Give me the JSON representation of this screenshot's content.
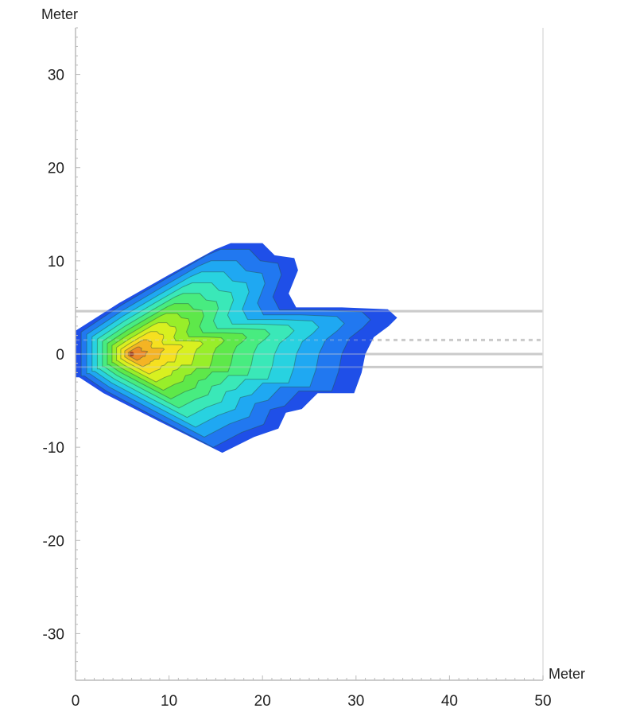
{
  "chart_data": {
    "type": "contour",
    "xlabel": "Meter",
    "ylabel": "Meter",
    "xlim": [
      0,
      50
    ],
    "ylim": [
      -35,
      35
    ],
    "xticks": [
      0,
      10,
      20,
      30,
      40,
      50
    ],
    "yticks": [
      -30,
      -20,
      -10,
      0,
      10,
      20,
      30
    ],
    "grid": false,
    "peak": [
      6,
      0
    ],
    "outer_boundary": [
      [
        0,
        2.5
      ],
      [
        4.7,
        5.5
      ],
      [
        10,
        8.5
      ],
      [
        14.9,
        11.2
      ],
      [
        16.6,
        11.9
      ],
      [
        20,
        11.9
      ],
      [
        21.3,
        10.6
      ],
      [
        23.4,
        10.3
      ],
      [
        23.8,
        9
      ],
      [
        22.8,
        6.5
      ],
      [
        23.6,
        5
      ],
      [
        28.5,
        5
      ],
      [
        33.4,
        4.8
      ],
      [
        34.4,
        3.9
      ],
      [
        33.5,
        3
      ],
      [
        31.9,
        1.8
      ],
      [
        31,
        0
      ],
      [
        30.6,
        -2
      ],
      [
        29.8,
        -4.2
      ],
      [
        25.9,
        -4.2
      ],
      [
        24.2,
        -5.9
      ],
      [
        22.5,
        -6.3
      ],
      [
        21.7,
        -8
      ],
      [
        19.1,
        -8.9
      ],
      [
        15.7,
        -10.6
      ],
      [
        14.9,
        -10.2
      ],
      [
        8.9,
        -7.2
      ],
      [
        3,
        -4.2
      ],
      [
        0.4,
        -2.5
      ],
      [
        0,
        -2.5
      ]
    ],
    "level_colors": [
      "#1f4fe8",
      "#2178f0",
      "#1fa8f2",
      "#28d2e0",
      "#3ae8b8",
      "#48ec80",
      "#5ee84a",
      "#98ee2a",
      "#d8f020",
      "#f6e020",
      "#f4b424",
      "#ec8a28"
    ],
    "reference_lines": [
      {
        "y": 4.6,
        "style": "solid"
      },
      {
        "y": 1.5,
        "style": "dashed"
      },
      {
        "y": 0,
        "style": "solid"
      },
      {
        "y": -1.4,
        "style": "solid"
      }
    ]
  }
}
